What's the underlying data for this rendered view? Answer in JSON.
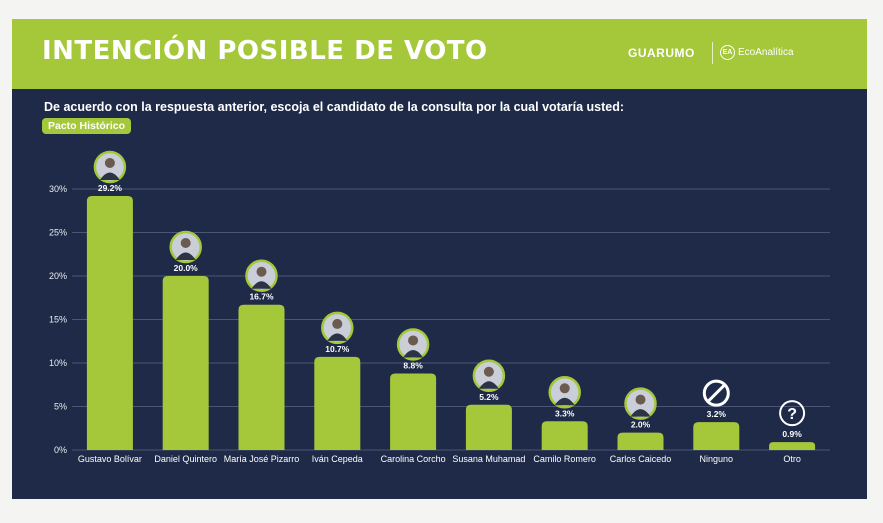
{
  "header": {
    "title": "INTENCIÓN POSIBLE DE VOTO",
    "logo_primary": "GUARUMO",
    "logo_secondary": "EcoAnalítica"
  },
  "subtitle": "De acuerdo con la respuesta anterior, escoja el candidato de la consulta por la cual votaría usted:",
  "tag": "Pacto Histórico",
  "colors": {
    "header": "#a5c83a",
    "panel": "#1e2a47",
    "bar": "#a5c83a"
  },
  "chart_data": {
    "type": "bar",
    "title": "INTENCIÓN POSIBLE DE VOTO",
    "categories": [
      "Gustavo Bolívar",
      "Daniel Quintero",
      "María José Pizarro",
      "Iván Cepeda",
      "Carolina Corcho",
      "Susana Muhamad",
      "Camilo Romero",
      "Carlos Caicedo",
      "Ninguno",
      "Otro"
    ],
    "values": [
      29.2,
      20.0,
      16.7,
      10.7,
      8.8,
      5.2,
      3.3,
      2.0,
      3.2,
      0.9
    ],
    "value_labels": [
      "29.2%",
      "20.0%",
      "16.7%",
      "10.7%",
      "8.8%",
      "5.2%",
      "3.3%",
      "2.0%",
      "3.2%",
      "0.9%"
    ],
    "icons": [
      "person-photo",
      "person-photo",
      "person-photo",
      "person-photo",
      "person-photo",
      "person-photo",
      "person-photo",
      "person-photo",
      "no-entry-icon",
      "question-icon"
    ],
    "y_ticks": [
      0,
      5,
      10,
      15,
      20,
      25,
      30
    ],
    "y_tick_labels": [
      "0%",
      "5%",
      "10%",
      "15%",
      "20%",
      "25%",
      "30%"
    ],
    "ylim": [
      0,
      30
    ],
    "xlabel": "",
    "ylabel": "",
    "grid": true
  }
}
